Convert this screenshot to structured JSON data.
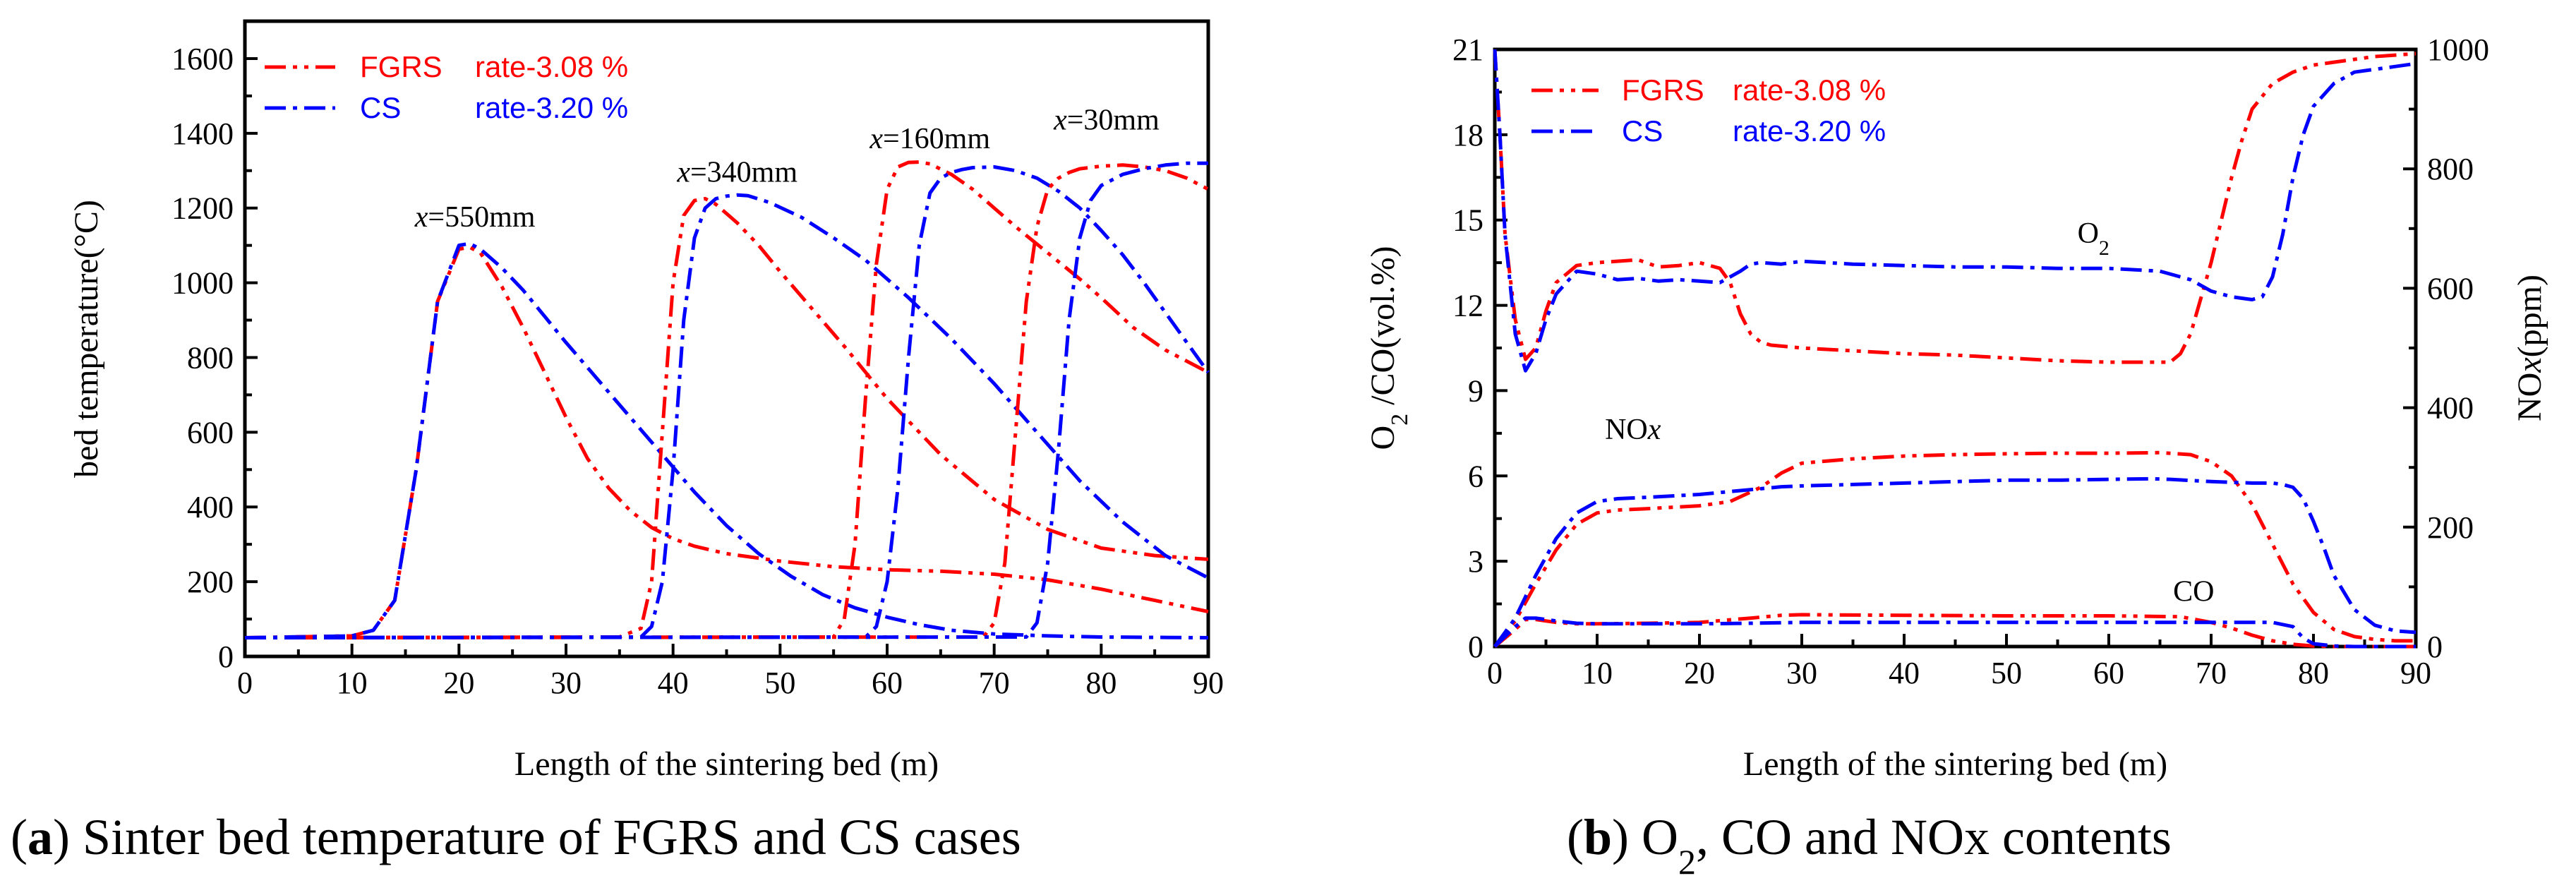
{
  "chart_data": [
    {
      "id": "a",
      "type": "line",
      "title": "",
      "caption_letter": "a",
      "caption_text": " Sinter bed temperature of FGRS and CS cases",
      "xlabel": "Length of the sintering bed (m)",
      "ylabel": "bed temperature(°C)",
      "xlim": [
        0,
        90
      ],
      "ylim": [
        0,
        1700
      ],
      "xticks": [
        0,
        10,
        20,
        30,
        40,
        50,
        60,
        70,
        80,
        90
      ],
      "yticks": [
        0,
        200,
        400,
        600,
        800,
        1000,
        1200,
        1400,
        1600
      ],
      "legend": [
        {
          "name": "FGRS",
          "rate": "rate-3.08 %",
          "color": "#ff0000",
          "dash": "dash-dot-dot"
        },
        {
          "name": "CS",
          "rate": "rate-3.20 %",
          "color": "#0000ff",
          "dash": "dash-dot"
        }
      ],
      "annotations": [
        {
          "prefix": "x",
          "text": "=550mm",
          "x": 21.5,
          "y": 1150
        },
        {
          "prefix": "x",
          "text": "=340mm",
          "x": 46,
          "y": 1270
        },
        {
          "prefix": "x",
          "text": "=160mm",
          "x": 64,
          "y": 1360
        },
        {
          "prefix": "x",
          "text": "=30mm",
          "x": 80.5,
          "y": 1410
        }
      ],
      "series": [
        {
          "name": "FGRS x=550mm",
          "color": "#ff0000",
          "dash": "dash-dot-dot",
          "x": [
            0,
            10,
            12,
            14,
            16,
            18,
            20,
            21,
            22,
            24,
            26,
            28,
            30,
            32,
            34,
            36,
            38,
            40,
            42,
            45,
            50,
            55,
            60,
            65,
            70,
            75,
            80,
            85,
            90
          ],
          "y": [
            50,
            55,
            70,
            150,
            500,
            950,
            1090,
            1095,
            1080,
            990,
            880,
            760,
            640,
            530,
            450,
            390,
            345,
            315,
            295,
            275,
            255,
            240,
            232,
            228,
            220,
            205,
            180,
            150,
            120
          ]
        },
        {
          "name": "CS x=550mm",
          "color": "#0000ff",
          "dash": "dash-dot",
          "x": [
            0,
            10,
            12,
            14,
            16,
            18,
            20,
            21,
            22,
            24,
            26,
            28,
            30,
            33,
            36,
            39,
            42,
            45,
            48,
            51,
            54,
            57,
            60,
            63,
            66,
            70,
            75,
            80,
            90
          ],
          "y": [
            50,
            55,
            70,
            150,
            500,
            950,
            1100,
            1105,
            1090,
            1040,
            980,
            910,
            840,
            740,
            640,
            540,
            440,
            350,
            275,
            215,
            165,
            130,
            105,
            85,
            70,
            60,
            55,
            52,
            50
          ]
        },
        {
          "name": "FGRS x=340mm",
          "color": "#ff0000",
          "dash": "dash-dot-dot",
          "x": [
            0,
            35,
            37,
            38,
            39,
            40,
            41,
            42,
            43,
            44,
            46,
            48,
            50,
            53,
            56,
            60,
            65,
            70,
            75,
            80,
            85,
            90
          ],
          "y": [
            50,
            52,
            75,
            200,
            600,
            1000,
            1180,
            1220,
            1225,
            1210,
            1160,
            1100,
            1030,
            930,
            830,
            690,
            540,
            420,
            340,
            290,
            270,
            260
          ]
        },
        {
          "name": "CS x=340mm",
          "color": "#0000ff",
          "dash": "dash-dot",
          "x": [
            0,
            37,
            38,
            39,
            40,
            41,
            42,
            43,
            44,
            45,
            46,
            47,
            49,
            52,
            55,
            58,
            62,
            66,
            70,
            74,
            78,
            82,
            86,
            90
          ],
          "y": [
            50,
            52,
            80,
            200,
            500,
            900,
            1120,
            1200,
            1225,
            1232,
            1235,
            1233,
            1215,
            1175,
            1120,
            1060,
            960,
            850,
            730,
            600,
            470,
            360,
            270,
            210
          ]
        },
        {
          "name": "FGRS x=160mm",
          "color": "#ff0000",
          "dash": "dash-dot-dot",
          "x": [
            0,
            55,
            56,
            57,
            58,
            59,
            60,
            61,
            62,
            63,
            64,
            66,
            68,
            70,
            72,
            75,
            78,
            80,
            83,
            86,
            90
          ],
          "y": [
            50,
            52,
            100,
            300,
            700,
            1050,
            1250,
            1310,
            1322,
            1323,
            1318,
            1290,
            1250,
            1200,
            1150,
            1080,
            1010,
            960,
            880,
            820,
            760
          ]
        },
        {
          "name": "CS x=160mm",
          "color": "#0000ff",
          "dash": "dash-dot",
          "x": [
            0,
            58,
            59,
            60,
            61,
            62,
            63,
            64,
            65,
            66,
            67,
            68,
            70,
            72,
            74,
            76,
            78,
            80,
            82,
            84,
            86,
            88,
            90
          ],
          "y": [
            50,
            52,
            80,
            200,
            450,
            800,
            1100,
            1240,
            1280,
            1295,
            1303,
            1308,
            1310,
            1300,
            1280,
            1245,
            1200,
            1140,
            1075,
            1000,
            920,
            840,
            760
          ]
        },
        {
          "name": "FGRS x=30mm",
          "color": "#ff0000",
          "dash": "dash-dot-dot",
          "x": [
            0,
            69,
            70,
            71,
            72,
            73,
            74,
            75,
            76,
            77,
            78,
            80,
            82,
            84,
            86,
            88,
            90
          ],
          "y": [
            50,
            52,
            90,
            250,
            600,
            950,
            1150,
            1250,
            1280,
            1295,
            1305,
            1312,
            1315,
            1310,
            1300,
            1280,
            1250
          ]
        },
        {
          "name": "CS x=30mm",
          "color": "#0000ff",
          "dash": "dash-dot",
          "x": [
            0,
            73,
            74,
            75,
            76,
            77,
            78,
            79,
            80,
            82,
            84,
            86,
            88,
            90
          ],
          "y": [
            50,
            52,
            90,
            250,
            550,
            900,
            1120,
            1220,
            1260,
            1290,
            1305,
            1315,
            1320,
            1320
          ]
        }
      ]
    },
    {
      "id": "b",
      "type": "line",
      "title": "",
      "caption_letter": "b",
      "caption_text_pre": " O",
      "caption_sub": "2",
      "caption_text_post": ", CO and NOx contents",
      "xlabel": "Length of the sintering bed (m)",
      "ylabel_left_pre": "O",
      "ylabel_left_sub": "2",
      "ylabel_left_post": " /CO(vol.%)",
      "ylabel_right_pre": "NO",
      "ylabel_right_italic": "x",
      "ylabel_right_post": "(ppm)",
      "xlim": [
        0,
        90
      ],
      "ylim_left": [
        0,
        21
      ],
      "ylim_right": [
        0,
        1000
      ],
      "xticks": [
        0,
        10,
        20,
        30,
        40,
        50,
        60,
        70,
        80,
        90
      ],
      "yticks_left": [
        0,
        3,
        6,
        9,
        12,
        15,
        18,
        21
      ],
      "yticks_right": [
        0,
        200,
        400,
        600,
        800,
        1000
      ],
      "legend": [
        {
          "name": "FGRS",
          "rate": "rate-3.08 %",
          "color": "#ff0000",
          "dash": "dash-dot-dot"
        },
        {
          "name": "CS",
          "rate": "rate-3.20 %",
          "color": "#0000ff",
          "dash": "dash-dot"
        }
      ],
      "annotations": [
        {
          "id": "o2",
          "text_pre": "O",
          "text_sub": "2",
          "x": 58.5,
          "y": 14.2
        },
        {
          "id": "nox",
          "text_pre": "NO",
          "text_italic": "x",
          "x": 13.5,
          "y": 7.3
        },
        {
          "id": "co",
          "text": "CO",
          "x": 68.3,
          "y": 1.6
        }
      ],
      "series": [
        {
          "name": "FGRS O2",
          "axis": "left",
          "color": "#ff0000",
          "dash": "dash-dot-dot",
          "x": [
            0,
            0.5,
            1,
            2,
            3,
            4,
            5,
            6,
            8,
            10,
            12,
            14,
            16,
            18,
            20,
            22,
            23,
            24,
            25,
            26,
            27,
            30,
            35,
            40,
            45,
            50,
            55,
            60,
            63,
            66,
            67,
            68,
            70,
            72,
            73,
            74,
            76,
            78,
            80,
            83,
            86,
            90
          ],
          "y": [
            21,
            18,
            14.5,
            11.5,
            10.1,
            10.5,
            11.8,
            12.8,
            13.4,
            13.5,
            13.55,
            13.6,
            13.35,
            13.4,
            13.5,
            13.3,
            12.8,
            11.7,
            11.0,
            10.7,
            10.6,
            10.5,
            10.4,
            10.3,
            10.25,
            10.15,
            10.05,
            10.0,
            10.0,
            10.0,
            10.3,
            11.0,
            13.5,
            16.5,
            17.8,
            18.9,
            19.8,
            20.2,
            20.45,
            20.6,
            20.75,
            20.85
          ]
        },
        {
          "name": "CS O2",
          "axis": "left",
          "color": "#0000ff",
          "dash": "dash-dot",
          "x": [
            0,
            0.5,
            1,
            2,
            3,
            4,
            5,
            6,
            8,
            10,
            12,
            14,
            16,
            18,
            20,
            22,
            24,
            25,
            26,
            28,
            30,
            35,
            40,
            45,
            50,
            55,
            60,
            65,
            68,
            70,
            72,
            74,
            75,
            76,
            77,
            78,
            79,
            80,
            82,
            84,
            86,
            88,
            90
          ],
          "y": [
            21,
            18,
            14.5,
            11.0,
            9.7,
            10.3,
            11.5,
            12.4,
            13.2,
            13.1,
            12.9,
            12.95,
            12.85,
            12.9,
            12.85,
            12.8,
            13.2,
            13.45,
            13.5,
            13.45,
            13.55,
            13.45,
            13.4,
            13.35,
            13.35,
            13.3,
            13.3,
            13.2,
            12.9,
            12.5,
            12.3,
            12.2,
            12.3,
            13.0,
            14.5,
            16.5,
            18.0,
            19.0,
            19.8,
            20.2,
            20.3,
            20.4,
            20.5
          ]
        },
        {
          "name": "FGRS NOx",
          "axis": "left",
          "color": "#ff0000",
          "dash": "dash-dot-dot",
          "x": [
            0,
            2,
            4,
            6,
            8,
            10,
            12,
            15,
            20,
            23,
            26,
            28,
            30,
            35,
            40,
            45,
            50,
            55,
            60,
            65,
            68,
            70,
            72,
            74,
            76,
            78,
            80,
            82,
            84,
            86,
            88,
            90
          ],
          "y": [
            0,
            0.9,
            2.2,
            3.4,
            4.3,
            4.7,
            4.8,
            4.85,
            4.95,
            5.1,
            5.6,
            6.1,
            6.45,
            6.6,
            6.7,
            6.75,
            6.78,
            6.8,
            6.8,
            6.82,
            6.75,
            6.5,
            6.0,
            5.0,
            3.6,
            2.2,
            1.2,
            0.6,
            0.35,
            0.25,
            0.2,
            0.2
          ]
        },
        {
          "name": "CS NOx",
          "axis": "left",
          "color": "#0000ff",
          "dash": "dash-dot",
          "x": [
            0,
            2,
            4,
            6,
            8,
            10,
            12,
            15,
            20,
            23,
            26,
            28,
            30,
            35,
            40,
            45,
            50,
            55,
            60,
            64,
            66,
            70,
            74,
            76,
            77,
            78,
            79,
            80,
            81,
            82,
            84,
            86,
            88,
            90
          ],
          "y": [
            0,
            1.0,
            2.5,
            3.8,
            4.7,
            5.1,
            5.2,
            5.25,
            5.35,
            5.45,
            5.55,
            5.62,
            5.65,
            5.7,
            5.75,
            5.8,
            5.85,
            5.85,
            5.88,
            5.9,
            5.88,
            5.8,
            5.75,
            5.75,
            5.7,
            5.6,
            5.2,
            4.4,
            3.5,
            2.5,
            1.3,
            0.75,
            0.55,
            0.5
          ]
        },
        {
          "name": "FGRS CO",
          "axis": "left",
          "color": "#ff0000",
          "dash": "dash-dot-dot",
          "x": [
            0,
            2,
            3,
            4,
            6,
            8,
            10,
            15,
            20,
            25,
            28,
            30,
            40,
            50,
            60,
            67,
            70,
            72,
            74,
            76,
            78,
            80,
            82,
            84,
            86,
            90
          ],
          "y": [
            0,
            0.6,
            0.95,
            0.95,
            0.85,
            0.8,
            0.8,
            0.82,
            0.85,
            1.0,
            1.1,
            1.12,
            1.1,
            1.08,
            1.08,
            1.05,
            0.85,
            0.65,
            0.4,
            0.2,
            0.08,
            0.02,
            0.0,
            0.0,
            0.0,
            0.0
          ]
        },
        {
          "name": "CS CO",
          "axis": "left",
          "color": "#0000ff",
          "dash": "dash-dot",
          "x": [
            0,
            2,
            3,
            4,
            6,
            8,
            10,
            15,
            20,
            25,
            30,
            40,
            50,
            60,
            65,
            70,
            74,
            76,
            78,
            79,
            80,
            82,
            84,
            86,
            88,
            90
          ],
          "y": [
            0,
            0.7,
            1.0,
            1.0,
            0.9,
            0.82,
            0.8,
            0.8,
            0.8,
            0.82,
            0.85,
            0.85,
            0.85,
            0.85,
            0.85,
            0.85,
            0.85,
            0.85,
            0.7,
            0.3,
            0.1,
            0.02,
            0.0,
            0.0,
            0.0,
            0.0
          ]
        }
      ]
    }
  ]
}
